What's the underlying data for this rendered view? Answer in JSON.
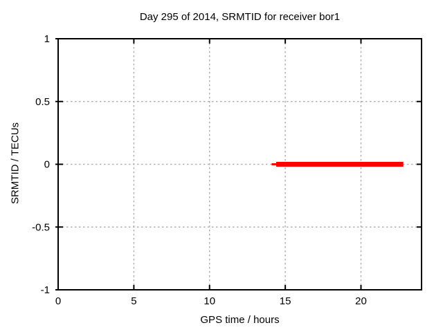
{
  "figure": {
    "background": "#ffffff"
  },
  "chart_data": {
    "type": "line",
    "title": "Day 295 of 2014, SRMTID for receiver bor1",
    "xlabel": "GPS time / hours",
    "ylabel": "SRMTID / TECUs",
    "xlim": [
      0,
      24
    ],
    "ylim": [
      -1,
      1
    ],
    "xticks": [
      {
        "value": 0,
        "label": "0"
      },
      {
        "value": 5,
        "label": "5"
      },
      {
        "value": 10,
        "label": "10"
      },
      {
        "value": 15,
        "label": "15"
      },
      {
        "value": 20,
        "label": "20"
      }
    ],
    "yticks": [
      {
        "value": -1,
        "label": "-1"
      },
      {
        "value": -0.5,
        "label": "-0.5"
      },
      {
        "value": 0,
        "label": "0"
      },
      {
        "value": 0.5,
        "label": "0.5"
      },
      {
        "value": 1,
        "label": "1"
      }
    ],
    "grid": {
      "visible": true,
      "style": "dashed",
      "color": "#b0b0b0"
    },
    "border_color": "#000000",
    "text_color": "#000000",
    "legend": "none",
    "series": [
      {
        "name": "SRMTID",
        "color": "#ff0000",
        "y_value": 0,
        "x_start": 14.1,
        "x_end": 22.8,
        "segments": [
          {
            "x_start": 14.1,
            "x_end": 14.4,
            "line_width": 3
          },
          {
            "x_start": 14.4,
            "x_end": 22.8,
            "line_width": 7
          }
        ]
      }
    ]
  }
}
